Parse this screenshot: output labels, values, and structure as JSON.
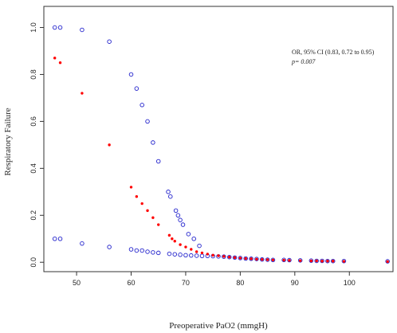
{
  "chart_data": {
    "type": "scatter",
    "title": "",
    "xlabel": "Preoperative PaO2 (mmgH)",
    "ylabel": "Respiratory Failure",
    "xlim": [
      44,
      108
    ],
    "ylim": [
      -0.04,
      1.09
    ],
    "x_ticks": [
      50,
      60,
      70,
      80,
      90,
      100
    ],
    "y_ticks": [
      0.0,
      0.2,
      0.4,
      0.6,
      0.8,
      1.0
    ],
    "x_tick_labels": [
      "50",
      "60",
      "70",
      "80",
      "90",
      "100"
    ],
    "y_tick_labels": [
      "0.0",
      "0.2",
      "0.4",
      "0.6",
      "0.8",
      "1.0"
    ],
    "grid": false,
    "annotation": {
      "line1": "OR, 95% CI (0.83, 0.72 to 0.95)",
      "line2": "p= 0.007"
    },
    "series": [
      {
        "marker": "filled-circle",
        "color": "#ff0000",
        "points": [
          [
            46,
            0.87
          ],
          [
            47,
            0.85
          ],
          [
            51,
            0.72
          ],
          [
            56,
            0.5
          ],
          [
            60,
            0.32
          ],
          [
            61,
            0.28
          ],
          [
            62,
            0.25
          ],
          [
            63,
            0.22
          ],
          [
            64,
            0.19
          ],
          [
            65,
            0.16
          ],
          [
            67,
            0.115
          ],
          [
            67.5,
            0.1
          ],
          [
            68,
            0.09
          ],
          [
            69,
            0.075
          ],
          [
            70,
            0.065
          ],
          [
            71,
            0.055
          ],
          [
            72,
            0.045
          ],
          [
            73,
            0.04
          ],
          [
            74,
            0.035
          ],
          [
            75,
            0.03
          ],
          [
            76,
            0.028
          ],
          [
            77,
            0.025
          ],
          [
            78,
            0.022
          ],
          [
            79,
            0.02
          ],
          [
            80,
            0.018
          ],
          [
            81,
            0.016
          ],
          [
            82,
            0.015
          ],
          [
            83,
            0.013
          ],
          [
            84,
            0.012
          ],
          [
            85,
            0.011
          ],
          [
            86,
            0.01
          ],
          [
            88,
            0.009
          ],
          [
            89,
            0.008
          ],
          [
            91,
            0.007
          ],
          [
            93,
            0.006
          ],
          [
            94,
            0.006
          ],
          [
            95,
            0.005
          ],
          [
            96,
            0.005
          ],
          [
            97,
            0.005
          ],
          [
            99,
            0.004
          ],
          [
            107,
            0.003
          ]
        ]
      },
      {
        "marker": "open-circle",
        "color": "#2222cc",
        "points": [
          [
            46,
            1.0
          ],
          [
            47,
            1.0
          ],
          [
            51,
            0.99
          ],
          [
            56,
            0.94
          ],
          [
            60,
            0.8
          ],
          [
            61,
            0.74
          ],
          [
            62,
            0.67
          ],
          [
            63,
            0.6
          ],
          [
            64,
            0.51
          ],
          [
            65,
            0.43
          ],
          [
            66.8,
            0.3
          ],
          [
            67.2,
            0.28
          ],
          [
            68.2,
            0.22
          ],
          [
            68.6,
            0.2
          ],
          [
            69,
            0.18
          ],
          [
            69.5,
            0.16
          ],
          [
            70.5,
            0.12
          ],
          [
            71.5,
            0.1
          ],
          [
            72.5,
            0.07
          ],
          [
            46,
            0.1
          ],
          [
            47,
            0.1
          ],
          [
            51,
            0.08
          ],
          [
            56,
            0.065
          ],
          [
            60,
            0.055
          ],
          [
            61,
            0.05
          ],
          [
            62,
            0.05
          ],
          [
            63,
            0.045
          ],
          [
            64,
            0.042
          ],
          [
            65,
            0.04
          ],
          [
            67,
            0.036
          ],
          [
            68,
            0.034
          ],
          [
            69,
            0.032
          ],
          [
            70,
            0.03
          ],
          [
            71,
            0.029
          ],
          [
            72,
            0.028
          ],
          [
            73,
            0.027
          ],
          [
            74,
            0.027
          ],
          [
            75,
            0.026
          ],
          [
            76,
            0.025
          ],
          [
            77,
            0.024
          ],
          [
            78,
            0.022
          ],
          [
            79,
            0.02
          ],
          [
            80,
            0.018
          ],
          [
            81,
            0.016
          ],
          [
            82,
            0.015
          ],
          [
            83,
            0.014
          ],
          [
            84,
            0.012
          ],
          [
            85,
            0.011
          ],
          [
            86,
            0.01
          ],
          [
            88,
            0.01
          ],
          [
            89,
            0.009
          ],
          [
            91,
            0.008
          ],
          [
            93,
            0.007
          ],
          [
            94,
            0.006
          ],
          [
            95,
            0.006
          ],
          [
            96,
            0.005
          ],
          [
            97,
            0.005
          ],
          [
            99,
            0.005
          ],
          [
            107,
            0.004
          ]
        ]
      }
    ]
  }
}
